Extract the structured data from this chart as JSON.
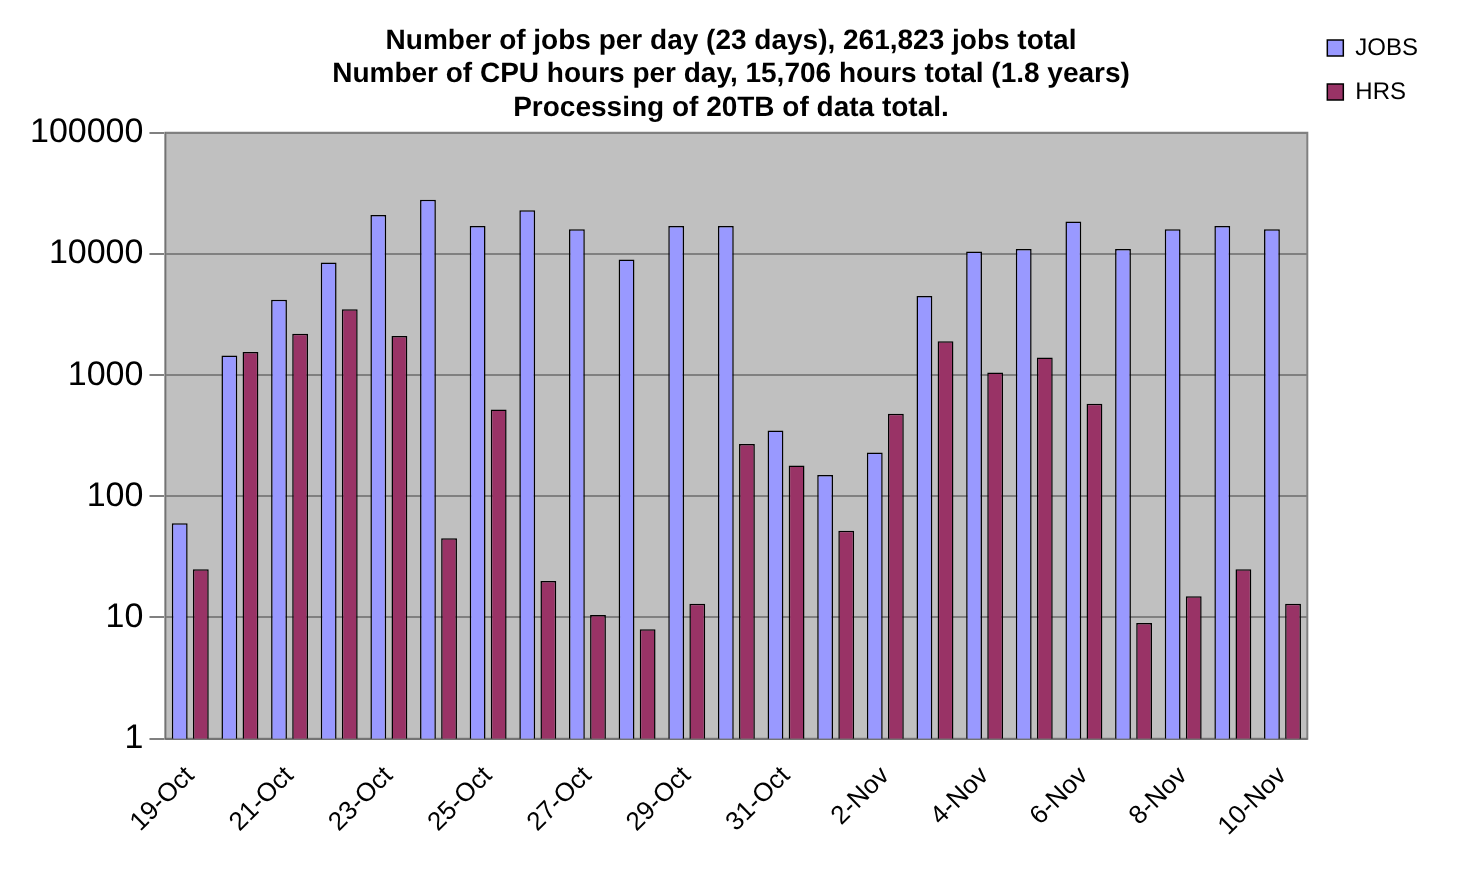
{
  "chart_data": {
    "type": "bar",
    "title": [
      "Number of jobs per day (23 days), 261,823 jobs total",
      "Number of CPU hours per day, 15,706 hours total (1.8 years)",
      "Processing of 20TB of data total."
    ],
    "categories": [
      "19-Oct",
      null,
      "21-Oct",
      null,
      "23-Oct",
      null,
      "25-Oct",
      null,
      "27-Oct",
      null,
      "29-Oct",
      null,
      "31-Oct",
      null,
      "2-Nov",
      null,
      "4-Nov",
      null,
      "6-Nov",
      null,
      "8-Nov",
      null,
      "10-Nov"
    ],
    "series": [
      {
        "name": "JOBS",
        "color": "#9999ff",
        "values": [
          60,
          1450,
          4200,
          8500,
          21000,
          28000,
          17000,
          23000,
          16000,
          9000,
          17000,
          17000,
          350,
          150,
          230,
          4500,
          10500,
          11000,
          18500,
          11000,
          16000,
          17000,
          16000
        ]
      },
      {
        "name": "HRS",
        "color": "#993366",
        "values": [
          25,
          1550,
          2200,
          3500,
          2100,
          45,
          520,
          20,
          10.5,
          8,
          13,
          270,
          180,
          52,
          480,
          1900,
          1050,
          1400,
          580,
          9,
          15,
          25,
          13
        ]
      }
    ],
    "log": true,
    "ylim": [
      1,
      100000
    ],
    "yticks": [
      1,
      10,
      100,
      1000,
      10000,
      100000
    ],
    "grid": "y",
    "legend": "top right"
  }
}
